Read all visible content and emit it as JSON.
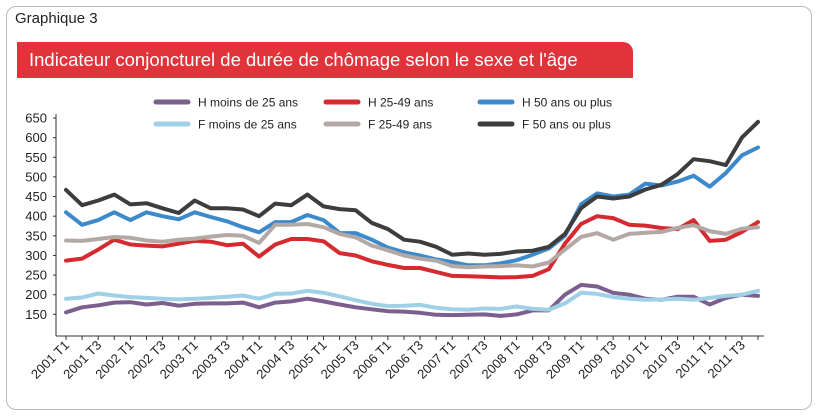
{
  "figure_label": "Graphique 3",
  "colors": {
    "banner": "#e2323a",
    "H moins de 25 ans": "#7b5f8e",
    "H 25-49 ans": "#d42a30",
    "H 50 ans ou plus": "#3c89cc",
    "F moins de 25 ans": "#9fd0e6",
    "F 25-49 ans": "#b4a8a4",
    "F 50 ans ou plus": "#3d3d3d"
  },
  "chart_data": {
    "type": "line",
    "title": "Indicateur conjoncturel de durée de chômage selon le sexe et l'âge",
    "xlabel": "",
    "ylabel": "",
    "ylim": [
      100,
      650
    ],
    "yticks": [
      150,
      200,
      250,
      300,
      350,
      400,
      450,
      500,
      550,
      600,
      650
    ],
    "grid": false,
    "legend_position": "top",
    "x": [
      "2001 T1",
      "2001 T2",
      "2001 T3",
      "2001 T4",
      "2002 T1",
      "2002 T2",
      "2002 T3",
      "2002 T4",
      "2003 T1",
      "2003 T2",
      "2003 T3",
      "2003 T4",
      "2004 T1",
      "2004 T2",
      "2004 T3",
      "2004 T4",
      "2005 T1",
      "2005 T2",
      "2005 T3",
      "2005 T4",
      "2006 T1",
      "2006 T2",
      "2006 T3",
      "2006 T4",
      "2007 T1",
      "2007 T2",
      "2007 T3",
      "2007 T4",
      "2008 T1",
      "2008 T2",
      "2008 T3",
      "2008 T4",
      "2009 T1",
      "2009 T2",
      "2009 T3",
      "2009 T4",
      "2010 T1",
      "2010 T2",
      "2010 T3",
      "2010 T4",
      "2011 T1",
      "2011 T2",
      "2011 T3",
      "2011 T4"
    ],
    "tick_labels": [
      "2001 T1",
      "2001 T3",
      "2002 T1",
      "2002 T3",
      "2003 T1",
      "2003 T3",
      "2004 T1",
      "2004 T3",
      "2005 T1",
      "2005 T3",
      "2006 T1",
      "2006 T3",
      "2007 T1",
      "2007 T3",
      "2008 T1",
      "2008 T3",
      "2009 T1",
      "2009 T3",
      "2010 T1",
      "2010 T3",
      "2011 T1",
      "2011 T3"
    ],
    "series": [
      {
        "name": "H moins de 25 ans",
        "values": [
          155,
          168,
          173,
          180,
          181,
          175,
          179,
          172,
          177,
          178,
          178,
          180,
          168,
          180,
          183,
          190,
          183,
          175,
          168,
          163,
          158,
          157,
          154,
          149,
          148,
          149,
          150,
          146,
          150,
          160,
          160,
          200,
          225,
          221,
          205,
          200,
          190,
          187,
          195,
          195,
          175,
          192,
          200,
          197
        ]
      },
      {
        "name": "H 25-49 ans",
        "values": [
          287,
          292,
          315,
          340,
          328,
          325,
          323,
          330,
          337,
          335,
          326,
          330,
          297,
          328,
          342,
          342,
          336,
          306,
          300,
          285,
          276,
          268,
          268,
          258,
          248,
          247,
          246,
          244,
          245,
          248,
          265,
          330,
          380,
          400,
          395,
          378,
          376,
          370,
          367,
          390,
          337,
          340,
          360,
          385
        ]
      },
      {
        "name": "H 50 ans ou plus",
        "values": [
          410,
          378,
          390,
          410,
          390,
          410,
          400,
          392,
          410,
          398,
          387,
          372,
          359,
          385,
          385,
          403,
          390,
          357,
          357,
          340,
          320,
          308,
          300,
          290,
          283,
          275,
          275,
          280,
          288,
          302,
          318,
          350,
          430,
          458,
          450,
          455,
          483,
          478,
          488,
          503,
          475,
          510,
          555,
          575
        ]
      },
      {
        "name": "F moins de 25 ans",
        "values": [
          190,
          193,
          203,
          198,
          194,
          192,
          190,
          188,
          190,
          192,
          195,
          198,
          190,
          202,
          203,
          210,
          205,
          196,
          186,
          177,
          171,
          172,
          174,
          167,
          163,
          162,
          165,
          164,
          170,
          164,
          162,
          178,
          205,
          202,
          194,
          190,
          187,
          188,
          190,
          187,
          192,
          197,
          200,
          210
        ]
      },
      {
        "name": "F 25-49 ans",
        "values": [
          338,
          337,
          342,
          347,
          345,
          338,
          335,
          340,
          343,
          348,
          352,
          350,
          332,
          378,
          378,
          380,
          372,
          355,
          346,
          325,
          313,
          300,
          292,
          287,
          273,
          270,
          272,
          273,
          275,
          272,
          282,
          315,
          347,
          357,
          340,
          355,
          358,
          360,
          370,
          377,
          362,
          355,
          368,
          372
        ]
      },
      {
        "name": "F 50 ans ou plus",
        "values": [
          467,
          428,
          440,
          455,
          430,
          433,
          420,
          408,
          440,
          420,
          420,
          417,
          400,
          432,
          428,
          455,
          425,
          418,
          415,
          383,
          367,
          340,
          335,
          322,
          302,
          305,
          302,
          304,
          310,
          312,
          322,
          355,
          420,
          450,
          445,
          450,
          468,
          480,
          507,
          545,
          540,
          530,
          600,
          640
        ]
      }
    ]
  }
}
